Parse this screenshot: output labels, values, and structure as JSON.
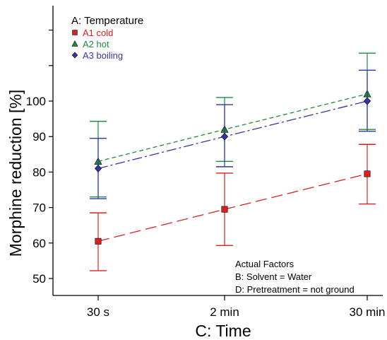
{
  "chart_data": {
    "type": "line",
    "xlabel": "C: Time",
    "ylabel": "Morphine reduction [%]",
    "categories": [
      "30 s",
      "2 min",
      "30 min"
    ],
    "ylim": [
      46,
      128
    ],
    "yticks": [
      50,
      60,
      70,
      80,
      90,
      100
    ],
    "ytick_labels": [
      "50",
      "60",
      "70",
      "80",
      "90",
      "100"
    ],
    "unlabeled_yticks": [
      110,
      120
    ],
    "grid": false,
    "legend": {
      "title": "A: Temperature",
      "placement": "top-left",
      "entries": [
        "A1 cold",
        "A2 hot",
        "A3 boiling"
      ]
    },
    "series": [
      {
        "name": "A1 cold",
        "color": "#d92020",
        "marker": "square",
        "dash": "long-dash",
        "values": [
          60.5,
          69.5,
          79.5
        ],
        "error_low": [
          52.2,
          59.3,
          71.0
        ],
        "error_high": [
          68.5,
          79.7,
          87.8
        ]
      },
      {
        "name": "A2 hot",
        "color": "#1f8a3a",
        "marker": "triangle",
        "dash": "short-dash",
        "values": [
          83.0,
          92.0,
          102.0
        ],
        "error_low": [
          73.0,
          83.0,
          92.0
        ],
        "error_high": [
          94.3,
          101.0,
          113.5
        ]
      },
      {
        "name": "A3 boiling",
        "color": "#3434a8",
        "marker": "diamond",
        "dash": "dash-dot",
        "values": [
          81.0,
          90.0,
          100.0
        ],
        "error_low": [
          72.5,
          81.5,
          91.5
        ],
        "error_high": [
          89.5,
          99.0,
          108.7
        ]
      }
    ],
    "annotations": {
      "title": "Actual Factors",
      "lines": [
        "B: Solvent = Water",
        "D: Pretreatment = not ground"
      ]
    }
  }
}
